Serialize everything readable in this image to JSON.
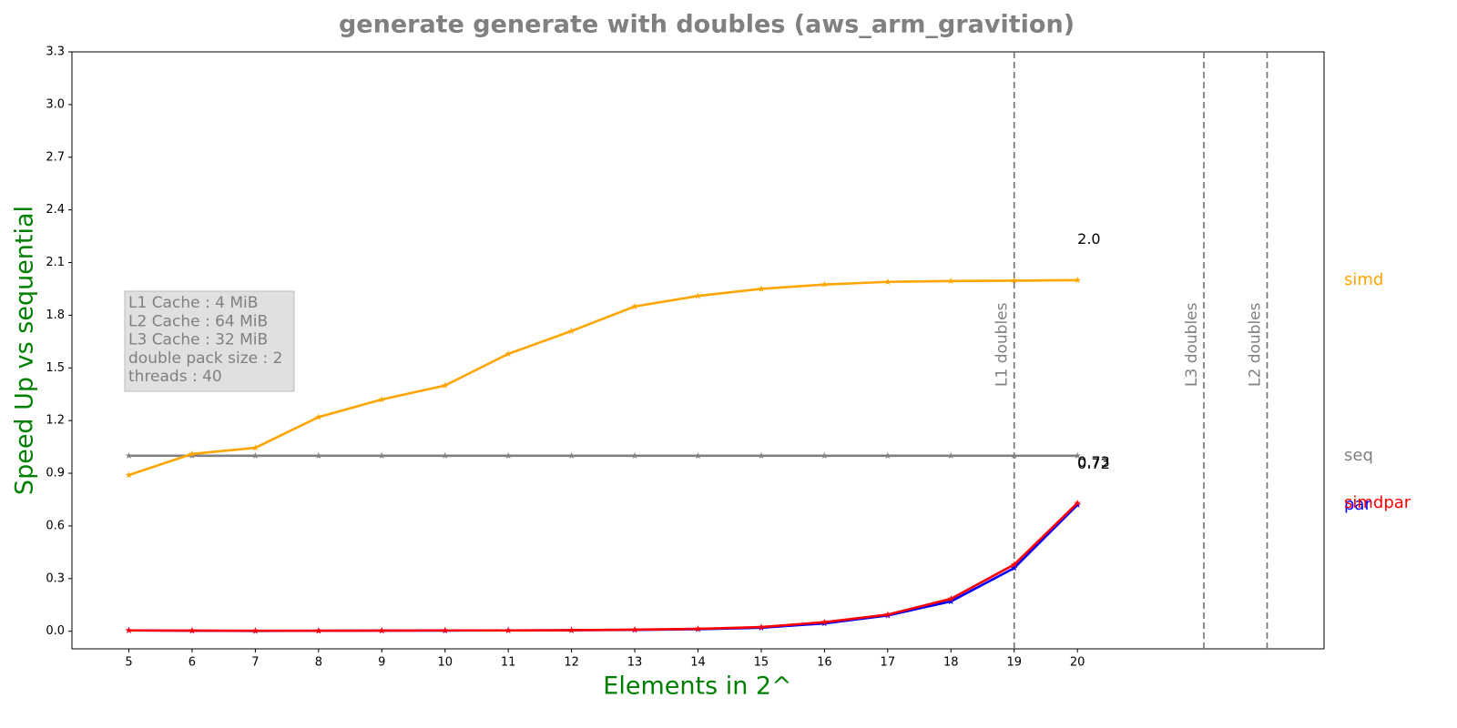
{
  "chart_data": {
    "type": "line",
    "title": "generate generate with doubles  (aws_arm_gravition)",
    "xlabel": "Elements in 2^",
    "ylabel": "Speed Up vs sequential",
    "x": [
      5,
      6,
      7,
      8,
      9,
      10,
      11,
      12,
      13,
      14,
      15,
      16,
      17,
      18,
      19,
      20
    ],
    "xlim": [
      4.1,
      23.9
    ],
    "xticks": [
      5,
      6,
      7,
      8,
      9,
      10,
      11,
      12,
      13,
      14,
      15,
      16,
      17,
      18,
      19,
      20
    ],
    "ylim": [
      -0.1,
      3.3
    ],
    "yticks": [
      {
        "value": 0,
        "label": "0.0"
      },
      0.3,
      0.6,
      0.9,
      {
        "value": 1.2,
        "label": "1.2"
      },
      1.5,
      1.8,
      2.1,
      2.4,
      2.7,
      {
        "value": 3,
        "label": "3.0"
      },
      3.3
    ],
    "series": [
      {
        "name": "seq",
        "color": "#808080",
        "values": [
          1,
          1,
          1,
          1,
          1,
          1,
          1,
          1,
          1,
          1,
          1,
          1,
          1,
          1,
          1,
          1
        ]
      },
      {
        "name": "simd",
        "color": "#ffa500",
        "values": [
          0.89,
          1.01,
          1.045,
          1.22,
          1.32,
          1.4,
          1.58,
          1.71,
          1.85,
          1.91,
          1.95,
          1.975,
          1.99,
          1.995,
          1.997,
          2.0
        ],
        "last_label": "2.0"
      },
      {
        "name": "par",
        "color": "#0000ff",
        "values": [
          0.005,
          0.003,
          0.002,
          0.003,
          0.004,
          0.004,
          0.005,
          0.006,
          0.008,
          0.012,
          0.02,
          0.045,
          0.09,
          0.17,
          0.36,
          0.72
        ],
        "last_label": "0.72"
      },
      {
        "name": "simdpar",
        "color": "#ff0000",
        "values": [
          0.005,
          0.004,
          0.003,
          0.003,
          0.004,
          0.005,
          0.005,
          0.006,
          0.009,
          0.014,
          0.024,
          0.052,
          0.095,
          0.185,
          0.38,
          0.73
        ],
        "last_label": "0.73"
      }
    ],
    "cache_lines": [
      {
        "label": "L1 doubles",
        "x": 19
      },
      {
        "label": "L3 doubles",
        "x": 22
      },
      {
        "label": "L2 doubles",
        "x": 23
      }
    ],
    "info_box": [
      "L1 Cache : 4 MiB",
      "L2 Cache : 64 MiB",
      "L3 Cache : 32 MiB",
      "double pack size : 2",
      "threads : 40"
    ]
  }
}
